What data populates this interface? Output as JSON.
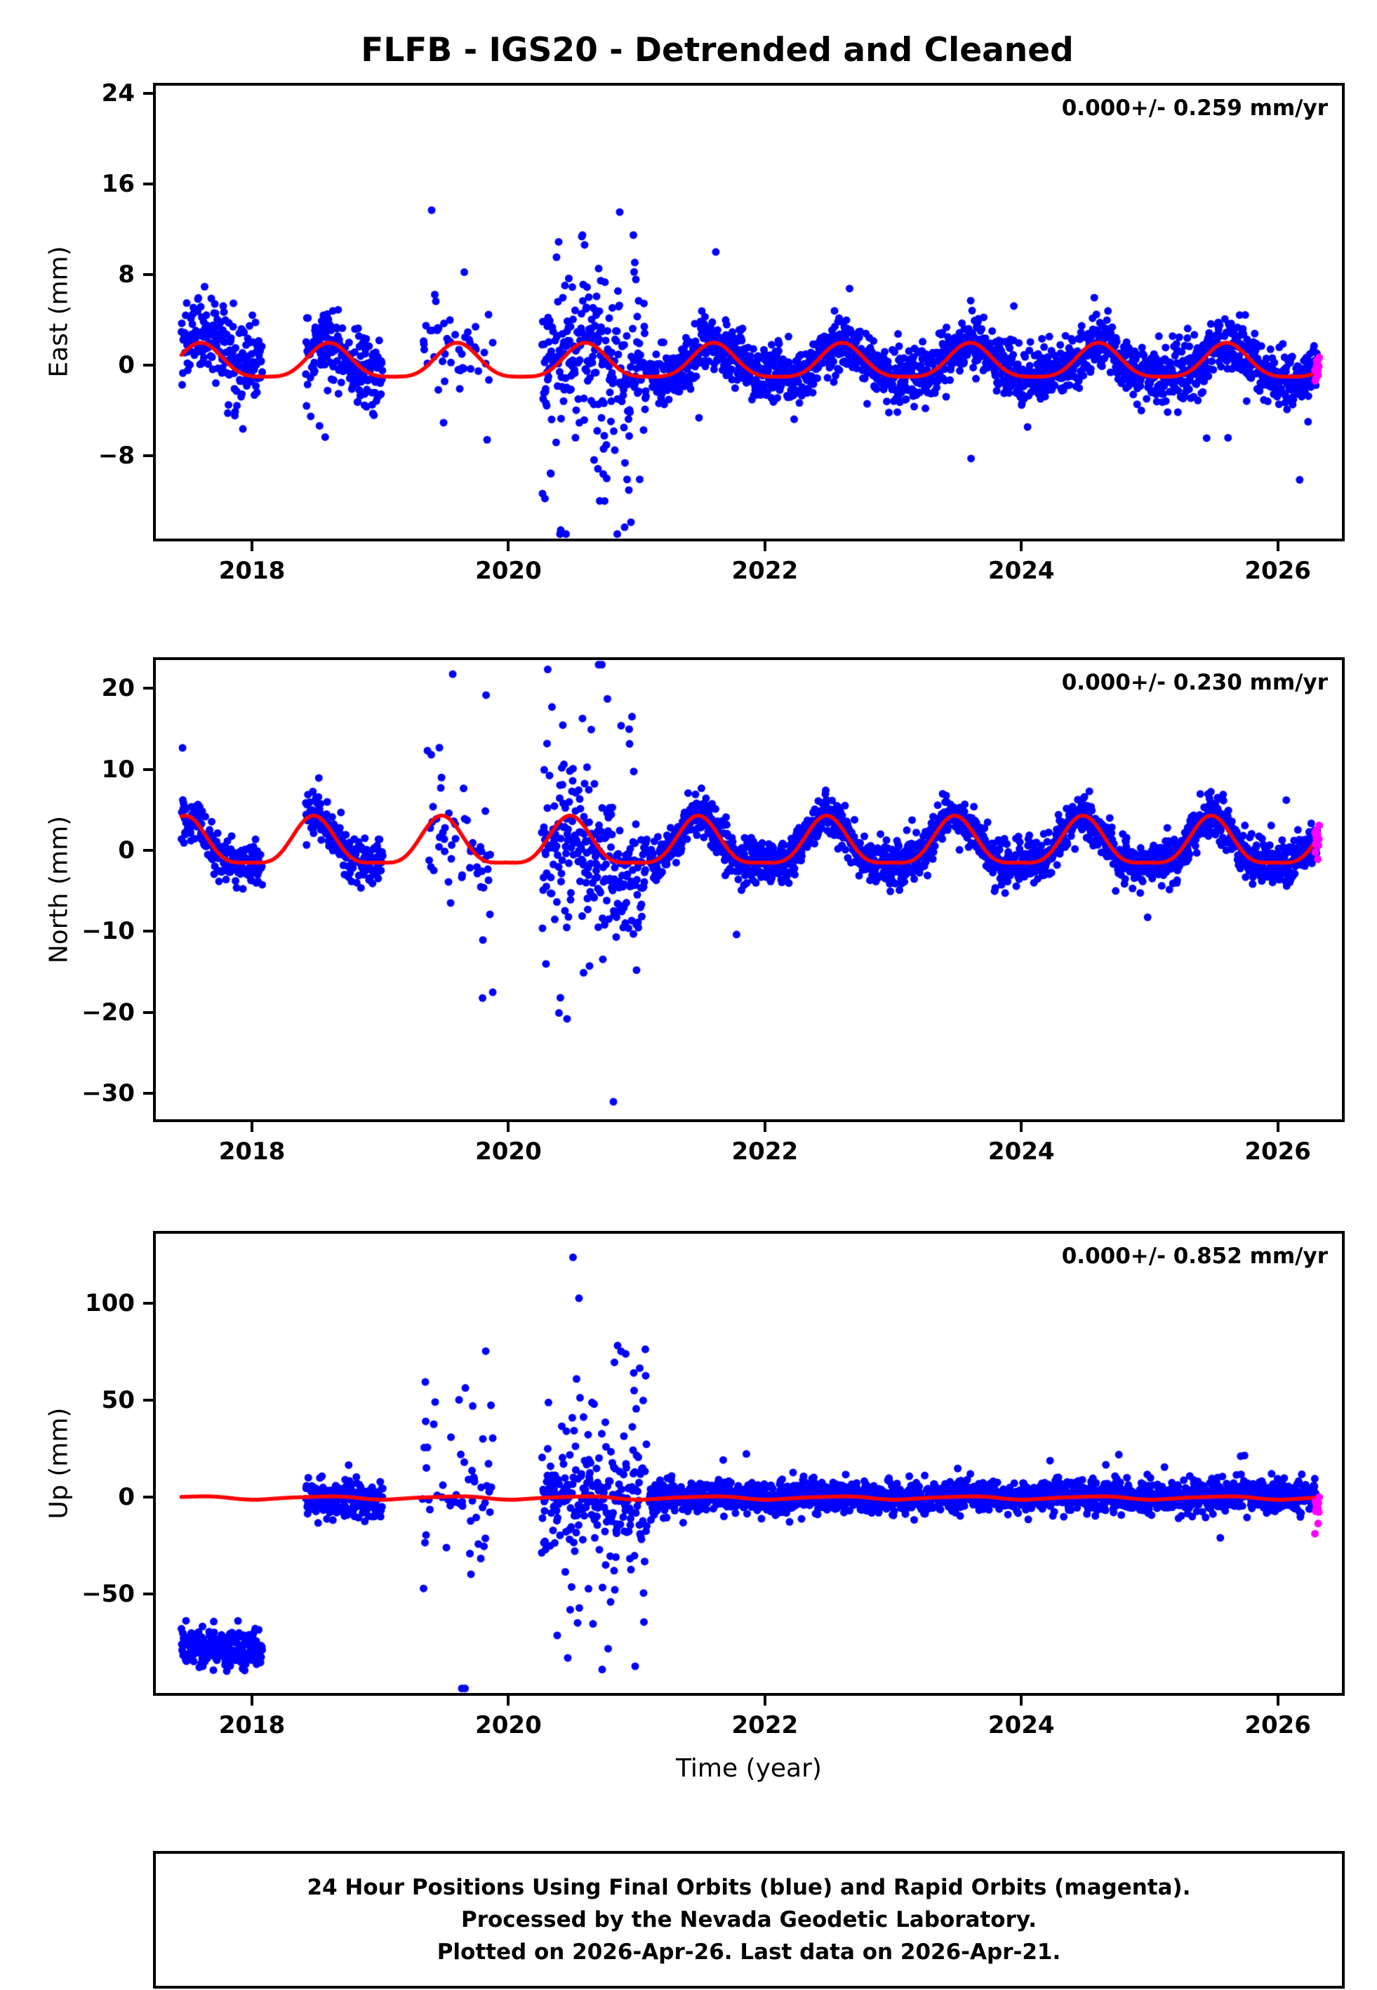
{
  "title": "FLFB - IGS20 - Detrended and Cleaned",
  "xlabel": "Time (year)",
  "footer": {
    "line1": "24 Hour Positions Using Final Orbits (blue) and Rapid Orbits (magenta).",
    "line2": "Processed by the Nevada Geodetic Laboratory.",
    "line3": "Plotted on 2026-Apr-26. Last data on 2026-Apr-21."
  },
  "colors": {
    "final_orbits": "#0000ff",
    "rapid_orbits": "#ff00ff",
    "model_fit": "#ff0000",
    "axis": "#000000",
    "background": "#ffffff"
  },
  "chart_data": [
    {
      "type": "scatter",
      "series_name": "East",
      "ylabel": "East (mm)",
      "annotation": "0.000+/- 0.259 mm/yr",
      "xlim": [
        2017.25,
        2026.5
      ],
      "ylim": [
        -15.3,
        24.7
      ],
      "xticks": [
        2018,
        2020,
        2022,
        2024,
        2026
      ],
      "yticks": [
        -8,
        0,
        8,
        16,
        24
      ],
      "grid": false,
      "model_range": [
        2017.45,
        2026.325
      ],
      "seasonal": {
        "mean": 0.15,
        "annual_amp": 1.5,
        "annual_phase": 0.35,
        "semiannual_amp": 0.35,
        "semiannual_phase": 0.475
      },
      "segments": [
        {
          "t0": 2017.45,
          "t1": 2018.08,
          "density": 0.85,
          "offset": 0.8,
          "sigma": 1.8,
          "outlier_frac": 0.05,
          "outlier_sigma": 2.5
        },
        {
          "t0": 2018.42,
          "t1": 2019.02,
          "density": 0.9,
          "offset": -0.3,
          "sigma": 1.7,
          "outlier_frac": 0.05,
          "outlier_sigma": 3
        },
        {
          "t0": 2019.33,
          "t1": 2019.88,
          "density": 0.3,
          "offset": 0,
          "sigma": 2.2,
          "outlier_frac": 0.18,
          "outlier_sigma": 6
        },
        {
          "t0": 2020.26,
          "t1": 2021.08,
          "density": 0.9,
          "offset": 0,
          "sigma": 2.5,
          "outlier_frac": 0.32,
          "outlier_sigma": 8
        },
        {
          "t0": 2021.1,
          "t1": 2026.31,
          "density": 0.97,
          "offset": 0,
          "sigma": 1.2,
          "outlier_frac": 0.02,
          "outlier_sigma": 3.5
        }
      ],
      "rapid": {
        "t0": 2026.29,
        "t1": 2026.325,
        "density": 0.95,
        "offset": 0.4,
        "sigma": 0.7
      }
    },
    {
      "type": "scatter",
      "series_name": "North",
      "ylabel": "North (mm)",
      "annotation": "0.000+/- 0.230 mm/yr",
      "xlim": [
        2017.25,
        2026.5
      ],
      "ylim": [
        -33.2,
        23.5
      ],
      "xticks": [
        2018,
        2020,
        2022,
        2024,
        2026
      ],
      "yticks": [
        -30,
        -20,
        -10,
        0,
        10,
        20
      ],
      "grid": false,
      "model_range": [
        2017.45,
        2026.325
      ],
      "seasonal": {
        "mean": 0.6,
        "annual_amp": 2.9,
        "annual_phase": 0.23,
        "semiannual_amp": 0.8,
        "semiannual_phase": 0.355
      },
      "segments": [
        {
          "t0": 2017.45,
          "t1": 2018.08,
          "density": 0.85,
          "offset": 0,
          "sigma": 1.4,
          "outlier_frac": 0.05,
          "outlier_sigma": 3
        },
        {
          "t0": 2018.42,
          "t1": 2019.02,
          "density": 0.9,
          "offset": -0.2,
          "sigma": 1.5,
          "outlier_frac": 0.05,
          "outlier_sigma": 3
        },
        {
          "t0": 2019.33,
          "t1": 2019.88,
          "density": 0.3,
          "offset": 0,
          "sigma": 3,
          "outlier_frac": 0.18,
          "outlier_sigma": 9
        },
        {
          "t0": 2020.26,
          "t1": 2021.08,
          "density": 0.9,
          "offset": -2,
          "sigma": 3.5,
          "outlier_frac": 0.32,
          "outlier_sigma": 10
        },
        {
          "t0": 2021.1,
          "t1": 2026.31,
          "density": 0.97,
          "offset": 0,
          "sigma": 1.3,
          "outlier_frac": 0.02,
          "outlier_sigma": 3.5
        }
      ],
      "rapid": {
        "t0": 2026.29,
        "t1": 2026.325,
        "density": 0.95,
        "offset": -0.5,
        "sigma": 0.8
      }
    },
    {
      "type": "scatter",
      "series_name": "Up",
      "ylabel": "Up (mm)",
      "annotation": "0.000+/- 0.852 mm/yr",
      "xlim": [
        2017.25,
        2026.5
      ],
      "ylim": [
        -101,
        136
      ],
      "xticks": [
        2018,
        2020,
        2022,
        2024,
        2026
      ],
      "yticks": [
        -50,
        0,
        50,
        100
      ],
      "grid": false,
      "model_range": [
        2017.45,
        2026.325
      ],
      "seasonal": {
        "mean": -0.3,
        "annual_amp": 0.8,
        "annual_phase": 0.3,
        "semiannual_amp": 0.2,
        "semiannual_phase": 0.1
      },
      "segments": [
        {
          "t0": 2017.45,
          "t1": 2018.08,
          "density": 0.85,
          "offset": -78,
          "sigma": 5,
          "outlier_frac": 0.05,
          "outlier_sigma": 8
        },
        {
          "t0": 2018.42,
          "t1": 2019.02,
          "density": 0.9,
          "offset": -1,
          "sigma": 5,
          "outlier_frac": 0.05,
          "outlier_sigma": 8
        },
        {
          "t0": 2019.33,
          "t1": 2019.88,
          "density": 0.35,
          "offset": 3,
          "sigma": 14,
          "outlier_frac": 0.45,
          "outlier_sigma": 45
        },
        {
          "t0": 2020.26,
          "t1": 2021.08,
          "density": 0.9,
          "offset": 0,
          "sigma": 10,
          "outlier_frac": 0.45,
          "outlier_sigma": 40
        },
        {
          "t0": 2021.1,
          "t1": 2026.31,
          "density": 0.97,
          "offset": 0.5,
          "sigma": 4,
          "outlier_frac": 0.03,
          "outlier_sigma": 9
        }
      ],
      "rapid": {
        "t0": 2026.29,
        "t1": 2026.325,
        "density": 0.95,
        "offset": -6,
        "sigma": 4
      }
    }
  ]
}
